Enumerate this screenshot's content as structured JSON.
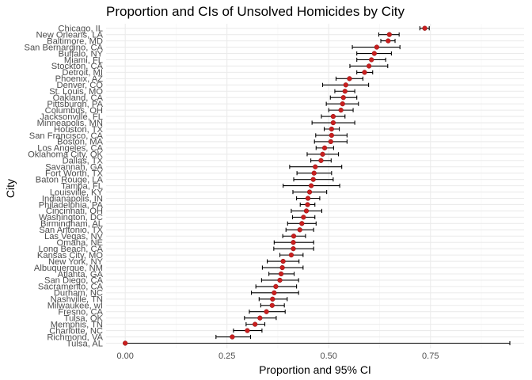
{
  "chart_data": {
    "type": "scatter",
    "title": "Proportion and CIs of Unsolved Homicides by City",
    "xlabel": "Proportion and 95% CI",
    "ylabel": "City",
    "xlim": [
      -0.047,
      0.98
    ],
    "x_ticks": [
      0.0,
      0.25,
      0.5,
      0.75
    ],
    "x_tick_labels": [
      "0.00",
      "0.25",
      "0.50",
      "0.75"
    ],
    "grid": true,
    "point_color": "#c91f1f",
    "error_bar_color": "#000000",
    "cities": [
      {
        "city": "Tulsa, AL",
        "estimate": 0.0,
        "lower": 0.0,
        "upper": 0.945
      },
      {
        "city": "Richmond, VA",
        "estimate": 0.263,
        "lower": 0.223,
        "upper": 0.308
      },
      {
        "city": "Charlotte, NC",
        "estimate": 0.3,
        "lower": 0.266,
        "upper": 0.336
      },
      {
        "city": "Memphis, TN",
        "estimate": 0.319,
        "lower": 0.297,
        "upper": 0.343
      },
      {
        "city": "Tulsa, OK",
        "estimate": 0.331,
        "lower": 0.293,
        "upper": 0.371
      },
      {
        "city": "Fresno, CA",
        "estimate": 0.347,
        "lower": 0.305,
        "upper": 0.393
      },
      {
        "city": "Milwaukee, wI",
        "estimate": 0.361,
        "lower": 0.333,
        "upper": 0.391
      },
      {
        "city": "Nashville, TN",
        "estimate": 0.362,
        "lower": 0.329,
        "upper": 0.398
      },
      {
        "city": "Durham, NC",
        "estimate": 0.366,
        "lower": 0.31,
        "upper": 0.426
      },
      {
        "city": "Sacramento, CA",
        "estimate": 0.37,
        "lower": 0.321,
        "upper": 0.421
      },
      {
        "city": "San Diego, CA",
        "estimate": 0.38,
        "lower": 0.335,
        "upper": 0.426
      },
      {
        "city": "Atlanta, GA",
        "estimate": 0.383,
        "lower": 0.353,
        "upper": 0.415
      },
      {
        "city": "Albuquerque, NM",
        "estimate": 0.386,
        "lower": 0.337,
        "upper": 0.437
      },
      {
        "city": "New York, NY",
        "estimate": 0.388,
        "lower": 0.349,
        "upper": 0.427
      },
      {
        "city": "Kansas City, MO",
        "estimate": 0.408,
        "lower": 0.38,
        "upper": 0.437
      },
      {
        "city": "Long Beach, CA",
        "estimate": 0.413,
        "lower": 0.365,
        "upper": 0.463
      },
      {
        "city": "Omaha, NE",
        "estimate": 0.413,
        "lower": 0.366,
        "upper": 0.463
      },
      {
        "city": "Las Vegas, NV",
        "estimate": 0.414,
        "lower": 0.387,
        "upper": 0.443
      },
      {
        "city": "San Antonio, TX",
        "estimate": 0.429,
        "lower": 0.395,
        "upper": 0.463
      },
      {
        "city": "Birmingham, AL",
        "estimate": 0.434,
        "lower": 0.399,
        "upper": 0.469
      },
      {
        "city": "Washington, DC",
        "estimate": 0.438,
        "lower": 0.411,
        "upper": 0.466
      },
      {
        "city": "Cincinnati, OH",
        "estimate": 0.445,
        "lower": 0.408,
        "upper": 0.483
      },
      {
        "city": "Philadelphia, PA",
        "estimate": 0.448,
        "lower": 0.43,
        "upper": 0.466
      },
      {
        "city": "Indianapolis, IN",
        "estimate": 0.449,
        "lower": 0.421,
        "upper": 0.478
      },
      {
        "city": "Louisville, KY",
        "estimate": 0.453,
        "lower": 0.412,
        "upper": 0.495
      },
      {
        "city": "Tampa, FL",
        "estimate": 0.457,
        "lower": 0.388,
        "upper": 0.527
      },
      {
        "city": "Baton Rouge, LA",
        "estimate": 0.462,
        "lower": 0.414,
        "upper": 0.511
      },
      {
        "city": "Fort Worth, TX",
        "estimate": 0.464,
        "lower": 0.422,
        "upper": 0.507
      },
      {
        "city": "Savannah, GA",
        "estimate": 0.467,
        "lower": 0.404,
        "upper": 0.532
      },
      {
        "city": "Dallas, TX",
        "estimate": 0.481,
        "lower": 0.456,
        "upper": 0.506
      },
      {
        "city": "Oklahoma City, OK",
        "estimate": 0.485,
        "lower": 0.447,
        "upper": 0.524
      },
      {
        "city": "Los Angeles, CA",
        "estimate": 0.49,
        "lower": 0.469,
        "upper": 0.512
      },
      {
        "city": "Boston, MA",
        "estimate": 0.505,
        "lower": 0.465,
        "upper": 0.545
      },
      {
        "city": "San Francisco, CA",
        "estimate": 0.507,
        "lower": 0.468,
        "upper": 0.545
      },
      {
        "city": "Houston, TX",
        "estimate": 0.507,
        "lower": 0.489,
        "upper": 0.526
      },
      {
        "city": "Minneapolis, MN",
        "estimate": 0.511,
        "lower": 0.459,
        "upper": 0.564
      },
      {
        "city": "Jacksonville, FL",
        "estimate": 0.511,
        "lower": 0.482,
        "upper": 0.54
      },
      {
        "city": "Columbus, OH",
        "estimate": 0.53,
        "lower": 0.5,
        "upper": 0.56
      },
      {
        "city": "Pittsburgh, PA",
        "estimate": 0.534,
        "lower": 0.494,
        "upper": 0.573
      },
      {
        "city": "Oakland, CA",
        "estimate": 0.536,
        "lower": 0.504,
        "upper": 0.569
      },
      {
        "city": "St. Louis, MO",
        "estimate": 0.54,
        "lower": 0.515,
        "upper": 0.564
      },
      {
        "city": "Denver, CO",
        "estimate": 0.542,
        "lower": 0.485,
        "upper": 0.598
      },
      {
        "city": "Phoenix, AZ",
        "estimate": 0.551,
        "lower": 0.518,
        "upper": 0.584
      },
      {
        "city": "Detroit, MI",
        "estimate": 0.588,
        "lower": 0.569,
        "upper": 0.608
      },
      {
        "city": "Stockton, CA",
        "estimate": 0.599,
        "lower": 0.552,
        "upper": 0.645
      },
      {
        "city": "Miami, FL",
        "estimate": 0.605,
        "lower": 0.569,
        "upper": 0.64
      },
      {
        "city": "Buffalo, NY",
        "estimate": 0.612,
        "lower": 0.569,
        "upper": 0.654
      },
      {
        "city": "San Bernardino, CA",
        "estimate": 0.618,
        "lower": 0.558,
        "upper": 0.675
      },
      {
        "city": "Baltimore, MD",
        "estimate": 0.646,
        "lower": 0.628,
        "upper": 0.663
      },
      {
        "city": "New Orleans, LA",
        "estimate": 0.649,
        "lower": 0.623,
        "upper": 0.673
      },
      {
        "city": "Chicago, IL",
        "estimate": 0.736,
        "lower": 0.724,
        "upper": 0.747
      }
    ]
  }
}
